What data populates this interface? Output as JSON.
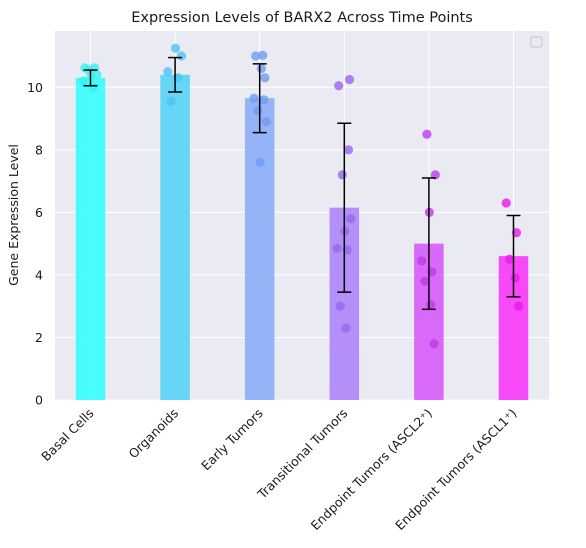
{
  "chart_data": {
    "type": "bar",
    "title": "Expression Levels of BARX2 Across Time Points",
    "xlabel": "",
    "ylabel": "Gene Expression Level",
    "ylim": [
      0,
      11.8
    ],
    "yticks": [
      0,
      2,
      4,
      6,
      8,
      10
    ],
    "grid": true,
    "legend": {
      "placement": "top-right",
      "entries": []
    },
    "categories": [
      "Basal Cells",
      "Organoids",
      "Early Tumors",
      "Transitional Tumors",
      "Endpoint Tumors (ASCL2⁺)",
      "Endpoint Tumors (ASCL1⁺)"
    ],
    "values": [
      10.3,
      10.4,
      9.65,
      6.15,
      5.0,
      4.6
    ],
    "errors": [
      0.25,
      0.55,
      1.1,
      2.7,
      2.1,
      1.3
    ],
    "colors": [
      "#3ffdfc",
      "#5fd4f6",
      "#8fb0f8",
      "#b08af8",
      "#d862f8",
      "#f840f7"
    ],
    "point_colors": [
      "#33f2f2",
      "#4bc6f0",
      "#6f9cf2",
      "#9a66ec",
      "#c03ae8",
      "#e81ae6"
    ],
    "points": [
      [
        10.62,
        10.62,
        10.55,
        10.4,
        10.35,
        10.2,
        10.0
      ],
      [
        11.0,
        11.25,
        10.5,
        10.3,
        9.55
      ],
      [
        11.02,
        11.0,
        10.6,
        10.3,
        9.65,
        9.6,
        9.25,
        8.9,
        7.6
      ],
      [
        10.25,
        10.05,
        8.0,
        7.2,
        5.8,
        5.4,
        4.85,
        4.8,
        3.0,
        2.3
      ],
      [
        8.5,
        7.2,
        6.0,
        4.45,
        4.1,
        3.8,
        3.05,
        1.8
      ],
      [
        6.3,
        5.35,
        4.5,
        3.9,
        3.0
      ]
    ]
  }
}
